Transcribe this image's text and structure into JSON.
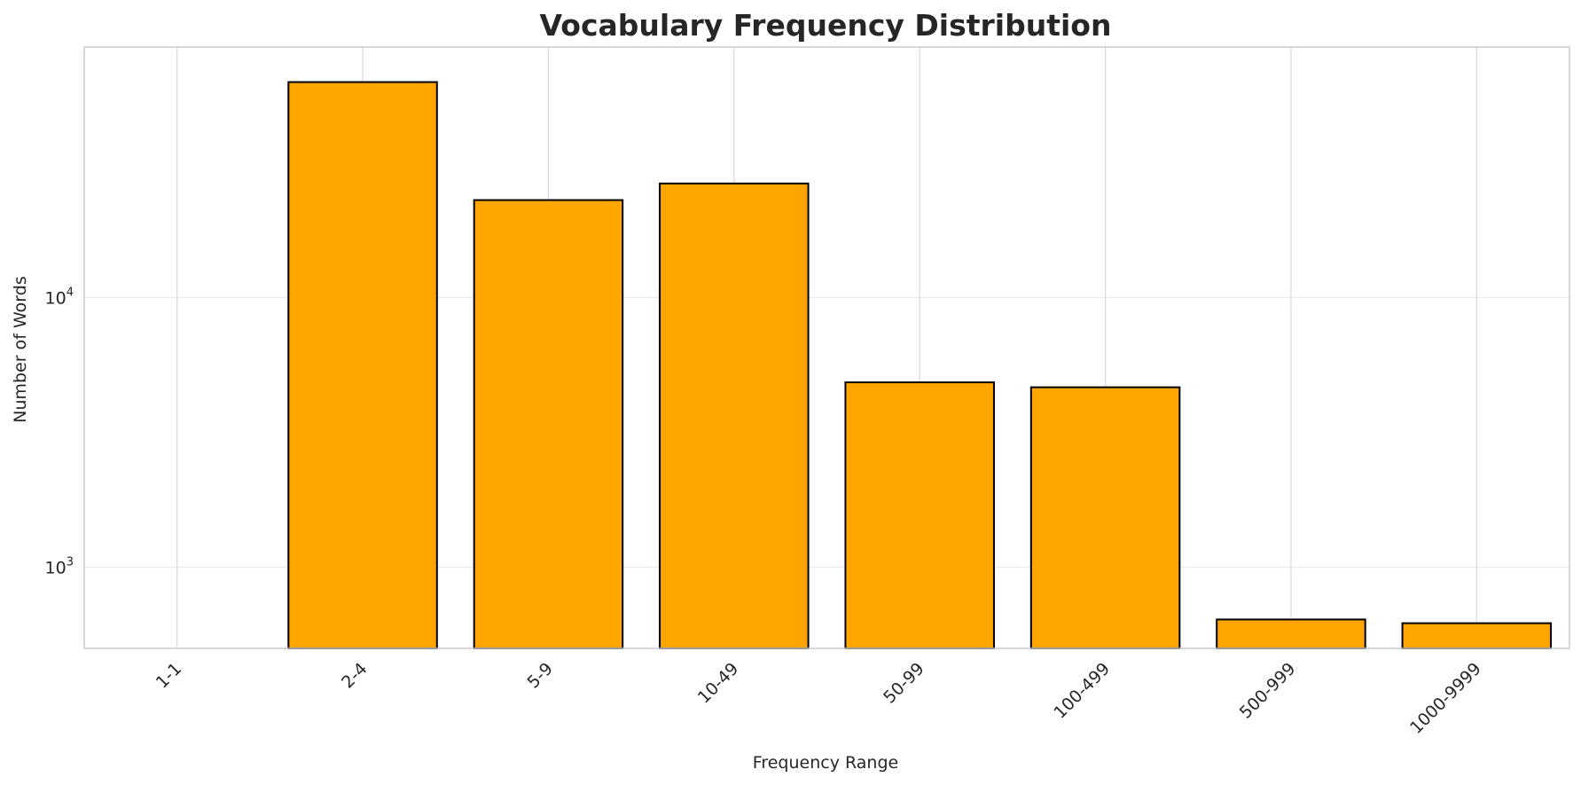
{
  "chart_data": {
    "type": "bar",
    "title": "Vocabulary Frequency Distribution",
    "xlabel": "Frequency Range",
    "ylabel": "Number of Words",
    "y_scale": "log",
    "ylim": [
      500,
      85000
    ],
    "y_ticks": [
      {
        "value": 1000,
        "base": "10",
        "exp": "3"
      },
      {
        "value": 10000,
        "base": "10",
        "exp": "4"
      }
    ],
    "categories": [
      "1-1",
      "2-4",
      "5-9",
      "10-49",
      "50-99",
      "100-499",
      "500-999",
      "1000-9999"
    ],
    "values": [
      0,
      63000,
      23000,
      26500,
      4850,
      4650,
      640,
      620
    ],
    "grid": true,
    "bar_color": "#FFA500",
    "bar_edge_color": "#000000",
    "grid_color": "#d9d9d9"
  }
}
